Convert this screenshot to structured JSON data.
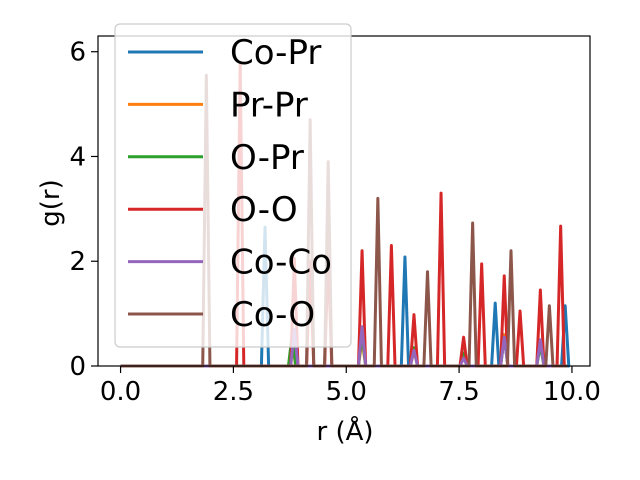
{
  "chart_data": {
    "type": "line",
    "xlabel": "r (Å)",
    "ylabel": "g(r)",
    "xlim": [
      -0.5,
      10.4
    ],
    "ylim": [
      0,
      6.3
    ],
    "xticks": [
      0.0,
      2.5,
      5.0,
      7.5,
      10.0
    ],
    "xtick_labels": [
      "0.0",
      "2.5",
      "5.0",
      "7.5",
      "10.0"
    ],
    "yticks": [
      0,
      2,
      4,
      6
    ],
    "ytick_labels": [
      "0",
      "2",
      "4",
      "6"
    ],
    "grid": false,
    "legend_position": "upper-left",
    "peak_half_width": 0.08,
    "series": [
      {
        "name": "Co-Pr",
        "color": "#1f77b4",
        "peaks": [
          [
            3.2,
            2.65
          ],
          [
            6.3,
            2.08
          ],
          [
            8.3,
            1.2
          ],
          [
            9.85,
            1.15
          ]
        ]
      },
      {
        "name": "Pr-Pr",
        "color": "#ff7f0e",
        "peaks": [
          [
            3.8,
            0.5
          ],
          [
            5.35,
            0.5
          ],
          [
            6.5,
            0.3
          ],
          [
            7.6,
            0.2
          ],
          [
            8.5,
            0.6
          ],
          [
            9.3,
            0.45
          ]
        ]
      },
      {
        "name": "O-Pr",
        "color": "#2ca02c",
        "peaks": [
          [
            3.8,
            0.6
          ],
          [
            5.35,
            0.6
          ],
          [
            6.5,
            0.35
          ],
          [
            7.6,
            0.25
          ],
          [
            8.5,
            0.55
          ],
          [
            9.3,
            0.4
          ]
        ]
      },
      {
        "name": "O-O",
        "color": "#d62728",
        "peaks": [
          [
            2.65,
            5.8
          ],
          [
            3.85,
            2.05
          ],
          [
            4.2,
            2.0
          ],
          [
            4.6,
            2.1
          ],
          [
            5.35,
            2.2
          ],
          [
            6.0,
            2.3
          ],
          [
            6.5,
            0.98
          ],
          [
            7.1,
            3.3
          ],
          [
            7.6,
            0.55
          ],
          [
            8.0,
            1.95
          ],
          [
            8.5,
            1.72
          ],
          [
            8.85,
            1.05
          ],
          [
            9.3,
            1.45
          ],
          [
            9.75,
            2.67
          ]
        ]
      },
      {
        "name": "Co-Co",
        "color": "#9467bd",
        "peaks": [
          [
            3.85,
            0.7
          ],
          [
            5.35,
            0.75
          ],
          [
            6.5,
            0.3
          ],
          [
            7.6,
            0.15
          ],
          [
            8.5,
            0.55
          ],
          [
            9.3,
            0.5
          ]
        ]
      },
      {
        "name": "Co-O",
        "color": "#8c564b",
        "peaks": [
          [
            1.9,
            5.55
          ],
          [
            4.2,
            4.7
          ],
          [
            4.6,
            3.9
          ],
          [
            5.7,
            3.2
          ],
          [
            6.8,
            1.8
          ],
          [
            7.8,
            2.73
          ],
          [
            8.65,
            2.2
          ],
          [
            9.5,
            1.15
          ]
        ]
      }
    ]
  }
}
